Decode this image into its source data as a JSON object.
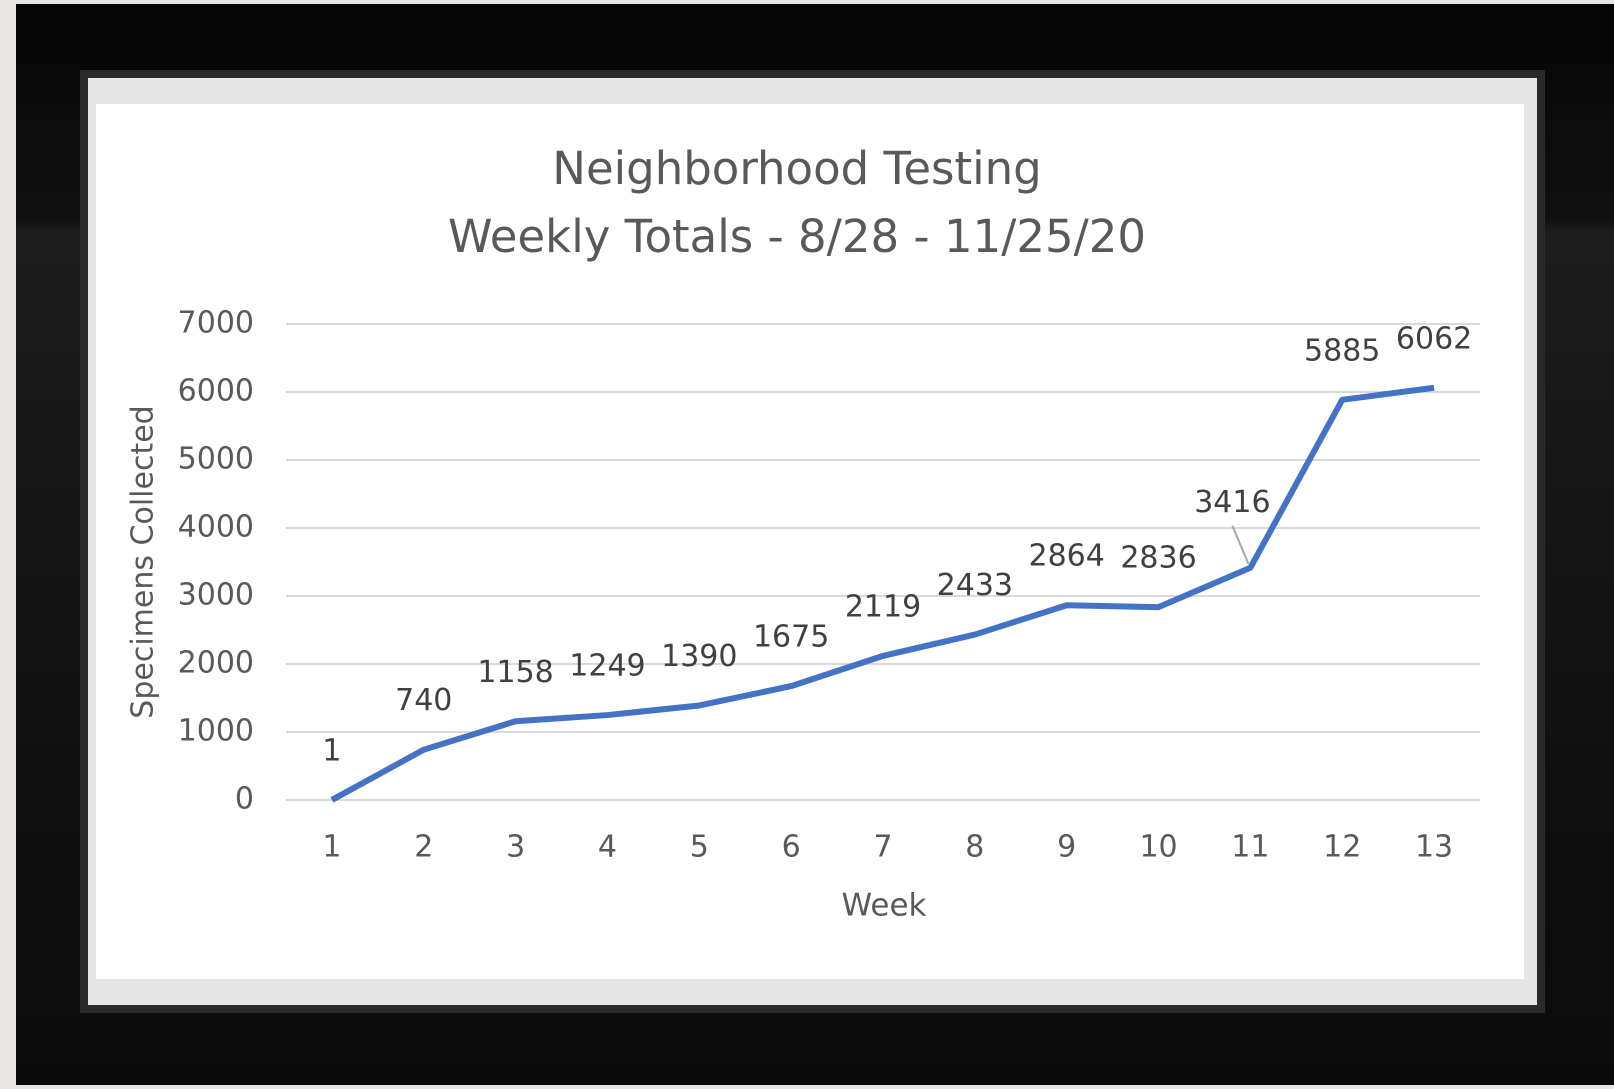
{
  "chart_data": {
    "type": "line",
    "title": "Neighborhood Testing",
    "subtitle": "Weekly Totals - 8/28 - 11/25/20",
    "x_label": "Week",
    "y_label": "Specimens Collected",
    "categories": [
      "1",
      "2",
      "3",
      "4",
      "5",
      "6",
      "7",
      "8",
      "9",
      "10",
      "11",
      "12",
      "13"
    ],
    "series": [
      {
        "name": "Specimens Collected",
        "color": "#4472c4",
        "values": [
          1,
          740,
          1158,
          1249,
          1390,
          1675,
          2119,
          2433,
          2864,
          2836,
          3416,
          5885,
          6062
        ]
      }
    ],
    "ylim": [
      0,
      7000
    ],
    "yticks": [
      0,
      1000,
      2000,
      3000,
      4000,
      5000,
      6000,
      7000
    ],
    "grid": true
  }
}
